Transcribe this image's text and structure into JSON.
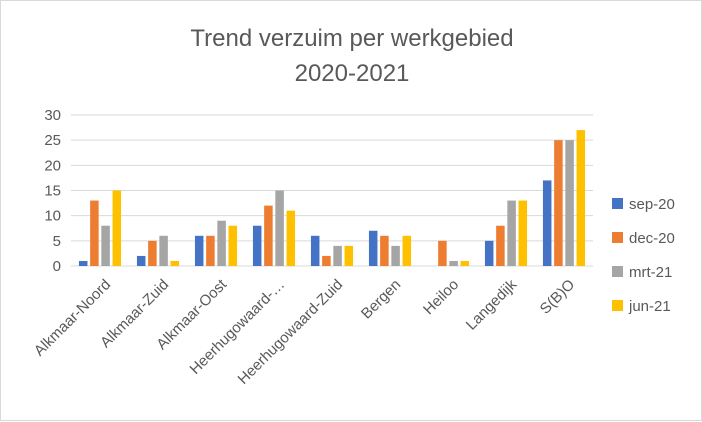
{
  "chart_data": {
    "type": "bar",
    "title_lines": [
      "Trend verzuim per werkgebied",
      "2020-2021"
    ],
    "categories": [
      "Alkmaar-Noord",
      "Alkmaar-Zuid",
      "Alkmaar-Oost",
      "Heerhugowaard-…",
      "Heerhugowaard-Zuid",
      "Bergen",
      "Heiloo",
      "Langedijk",
      "S(B)O"
    ],
    "series": [
      {
        "name": "sep-20",
        "color": "#4472C4",
        "values": [
          1,
          2,
          6,
          8,
          6,
          7,
          0,
          5,
          17
        ]
      },
      {
        "name": "dec-20",
        "color": "#ED7D31",
        "values": [
          13,
          5,
          6,
          12,
          2,
          6,
          5,
          8,
          25
        ]
      },
      {
        "name": "mrt-21",
        "color": "#A5A5A5",
        "values": [
          8,
          6,
          9,
          15,
          4,
          4,
          1,
          13,
          25
        ]
      },
      {
        "name": "jun-21",
        "color": "#FFC000",
        "values": [
          15,
          1,
          8,
          11,
          4,
          6,
          1,
          13,
          27
        ]
      }
    ],
    "ylim": [
      0,
      30
    ],
    "yticks": [
      0,
      5,
      10,
      15,
      20,
      25,
      30
    ],
    "grid": true,
    "legend_position": "right"
  }
}
